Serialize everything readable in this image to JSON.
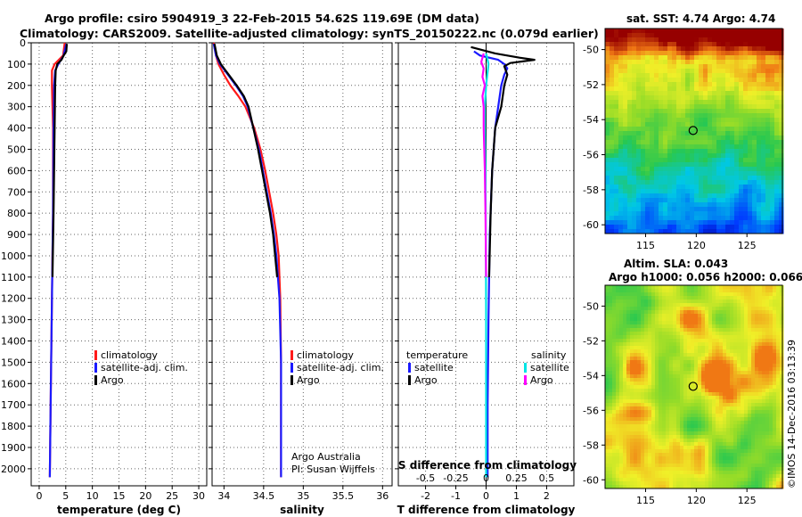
{
  "header": {
    "line1": "Argo profile: csiro 5904919_3 22-Feb-2015 54.62S 119.69E (DM data)",
    "line2": "Climatology: CARS2009. Satellite-adjusted climatology: synTS_20150222.nc (0.079d earlier)"
  },
  "colors": {
    "climatology": "#ff1a1a",
    "satellite": "#1a1aff",
    "argo": "#000000",
    "satellite_s": "#00e5e5",
    "argo_s": "#ff00ff"
  },
  "chart_data": [
    {
      "type": "line",
      "id": "temperature",
      "xlabel": "temperature (deg C)",
      "ylabel": "",
      "xlim": [
        -1.5,
        31.5
      ],
      "ylim": [
        2080,
        0
      ],
      "x_ticks": [
        0,
        5,
        10,
        15,
        20,
        25,
        30
      ],
      "x_tick_labels": [
        "0",
        "5",
        "10",
        "15",
        "20",
        "25",
        "30"
      ],
      "y_ticks": [
        0,
        100,
        200,
        300,
        400,
        500,
        600,
        700,
        800,
        900,
        1000,
        1100,
        1200,
        1300,
        1400,
        1500,
        1600,
        1700,
        1800,
        1900,
        2000
      ],
      "y_tick_labels": [
        "0",
        "100",
        "200",
        "300",
        "400",
        "500",
        "600",
        "700",
        "800",
        "900",
        "1000",
        "1100",
        "1200",
        "1300",
        "1400",
        "1500",
        "1600",
        "1700",
        "1800",
        "1900",
        "2000"
      ],
      "legend": [
        {
          "label": "climatology",
          "color": "#ff1a1a"
        },
        {
          "label": "satellite-adj. clim.",
          "color": "#1a1aff"
        },
        {
          "label": "Argo",
          "color": "#000000"
        }
      ],
      "series": [
        {
          "name": "climatology",
          "color": "#ff1a1a",
          "depth": [
            0,
            60,
            100,
            130,
            200,
            400,
            800,
            1200,
            1600,
            2040
          ],
          "values": [
            4.8,
            4.5,
            2.9,
            2.4,
            2.4,
            2.6,
            2.6,
            2.4,
            2.2,
            2.0
          ]
        },
        {
          "name": "satellite-adj. clim.",
          "color": "#1a1aff",
          "depth": [
            5,
            60,
            100,
            130,
            200,
            400,
            800,
            1200,
            1600,
            2040
          ],
          "values": [
            5.1,
            4.6,
            3.6,
            3.0,
            2.8,
            2.7,
            2.6,
            2.4,
            2.2,
            2.0
          ]
        },
        {
          "name": "Argo",
          "color": "#000000",
          "depth": [
            5,
            40,
            60,
            80,
            100,
            130,
            200,
            400,
            800,
            1100
          ],
          "values": [
            5.2,
            5.1,
            4.6,
            4.2,
            3.4,
            3.1,
            3.0,
            2.9,
            2.7,
            2.5
          ]
        }
      ]
    },
    {
      "type": "line",
      "id": "salinity",
      "xlabel": "salinity",
      "xlim": [
        33.85,
        36.12
      ],
      "ylim": [
        2080,
        0
      ],
      "x_ticks": [
        34,
        34.5,
        35,
        35.5,
        36
      ],
      "x_tick_labels": [
        "34",
        "34.5",
        "35",
        "35.5",
        "36"
      ],
      "legend": [
        {
          "label": "climatology",
          "color": "#ff1a1a"
        },
        {
          "label": "satellite-adj. clim.",
          "color": "#1a1aff"
        },
        {
          "label": "Argo",
          "color": "#000000"
        }
      ],
      "annotations": [
        "Argo Australia",
        "PI: Susan Wijffels"
      ],
      "series": [
        {
          "name": "climatology",
          "color": "#ff1a1a",
          "depth": [
            0,
            60,
            100,
            150,
            200,
            250,
            300,
            400,
            500,
            600,
            700,
            800,
            900,
            1000,
            1200,
            1500,
            1800,
            2040
          ],
          "values": [
            33.87,
            33.9,
            33.93,
            34.0,
            34.08,
            34.18,
            34.27,
            34.38,
            34.46,
            34.52,
            34.57,
            34.62,
            34.66,
            34.69,
            34.71,
            34.72,
            34.72,
            34.72
          ]
        },
        {
          "name": "satellite-adj. clim.",
          "color": "#1a1aff",
          "depth": [
            5,
            60,
            100,
            150,
            200,
            250,
            300,
            400,
            500,
            600,
            700,
            800,
            900,
            1000,
            1200,
            1500,
            1800,
            2040
          ],
          "values": [
            33.87,
            33.9,
            33.95,
            34.05,
            34.15,
            34.24,
            34.3,
            34.37,
            34.44,
            34.49,
            34.54,
            34.59,
            34.63,
            34.66,
            34.7,
            34.72,
            34.72,
            34.72
          ]
        },
        {
          "name": "Argo",
          "color": "#000000",
          "depth": [
            5,
            60,
            100,
            150,
            200,
            250,
            300,
            400,
            500,
            600,
            700,
            800,
            900,
            1100
          ],
          "values": [
            33.88,
            33.91,
            33.96,
            34.06,
            34.16,
            34.25,
            34.31,
            34.37,
            34.43,
            34.48,
            34.53,
            34.58,
            34.62,
            34.67
          ]
        }
      ]
    },
    {
      "type": "line",
      "id": "difference",
      "xlabel": "T difference from climatology",
      "xlabel2": "S difference from climatology",
      "xlim": [
        -2.9,
        2.9
      ],
      "ylim": [
        2080,
        0
      ],
      "x_ticks": [
        -2,
        -1,
        0,
        1,
        2
      ],
      "x_tick_labels": [
        "-2",
        "-1",
        "0",
        "1",
        "2"
      ],
      "s_ticks": [
        -0.5,
        -0.25,
        0,
        0.25,
        0.5
      ],
      "s_tick_labels": [
        "-0.5",
        "-0.25",
        "0",
        "0.25",
        "0.5"
      ],
      "s_scale_note": "S axis: 1 salinity unit = 4 T units",
      "legend_temperature_title": "temperature",
      "legend_salinity_title": "salinity",
      "legend": [
        {
          "label": "satellite",
          "color": "#1a1aff",
          "group": "temperature"
        },
        {
          "label": "Argo",
          "color": "#000000",
          "group": "temperature"
        },
        {
          "label": "satellite",
          "color": "#00e5e5",
          "group": "salinity"
        },
        {
          "label": "Argo",
          "color": "#ff00ff",
          "group": "salinity"
        }
      ],
      "series": [
        {
          "name": "T satellite",
          "color": "#1a1aff",
          "depth": [
            40,
            60,
            80,
            100,
            120,
            150,
            200,
            300,
            400,
            600,
            900,
            1300,
            1700,
            2040
          ],
          "values": [
            -0.4,
            -0.2,
            0.4,
            0.6,
            0.7,
            0.6,
            0.5,
            0.4,
            0.3,
            0.2,
            0.12,
            0.08,
            0.05,
            0.05
          ]
        },
        {
          "name": "T Argo",
          "color": "#000000",
          "depth": [
            20,
            50,
            70,
            80,
            95,
            110,
            150,
            200,
            300,
            400,
            600,
            800,
            1100
          ],
          "values": [
            -0.5,
            0.3,
            1.1,
            1.6,
            0.8,
            0.6,
            0.7,
            0.6,
            0.5,
            0.3,
            0.2,
            0.15,
            0.1
          ]
        },
        {
          "name": "S satellite",
          "color": "#00e5e5",
          "depth": [
            50,
            100,
            200,
            300,
            400,
            600,
            900,
            1300,
            1700,
            2040
          ],
          "values": [
            0.0,
            0.02,
            0.0,
            -0.01,
            -0.01,
            -0.005,
            -0.002,
            0.0,
            0.0,
            0.0
          ]
        },
        {
          "name": "S Argo",
          "color": "#ff00ff",
          "depth": [
            50,
            90,
            120,
            160,
            200,
            250,
            300,
            400,
            600,
            800,
            1100
          ],
          "values": [
            -0.02,
            -0.04,
            -0.02,
            -0.03,
            -0.01,
            -0.03,
            -0.02,
            -0.02,
            -0.01,
            -0.005,
            0.0
          ]
        }
      ]
    },
    {
      "type": "heatmap",
      "id": "sst_map",
      "title": "sat. SST: 4.74 Argo: 4.74",
      "x_ticks": [
        115,
        120,
        125
      ],
      "x_tick_labels": [
        "115",
        "120",
        "125"
      ],
      "y_ticks": [
        -50,
        -52,
        -54,
        -56,
        -58,
        -60
      ],
      "y_tick_labels": [
        "-50",
        "-52",
        "-54",
        "-56",
        "-58",
        "-60"
      ],
      "xlim": [
        111,
        128.5
      ],
      "ylim": [
        -60.5,
        -48.8
      ],
      "marker": {
        "lon": 119.69,
        "lat": -54.62
      }
    },
    {
      "type": "heatmap",
      "id": "sla_map",
      "title": "Altim. SLA: 0.043",
      "subtitle": "Argo h1000: 0.056 h2000: 0.066",
      "x_ticks": [
        115,
        120,
        125
      ],
      "x_tick_labels": [
        "115",
        "120",
        "125"
      ],
      "y_ticks": [
        -50,
        -52,
        -54,
        -56,
        -58,
        -60
      ],
      "y_tick_labels": [
        "-50",
        "-52",
        "-54",
        "-56",
        "-58",
        "-60"
      ],
      "xlim": [
        111,
        128.5
      ],
      "ylim": [
        -60.5,
        -48.8
      ],
      "marker": {
        "lon": 119.69,
        "lat": -54.62
      }
    }
  ],
  "credit": "©IMOS 14-Dec-2016 03:13:39"
}
